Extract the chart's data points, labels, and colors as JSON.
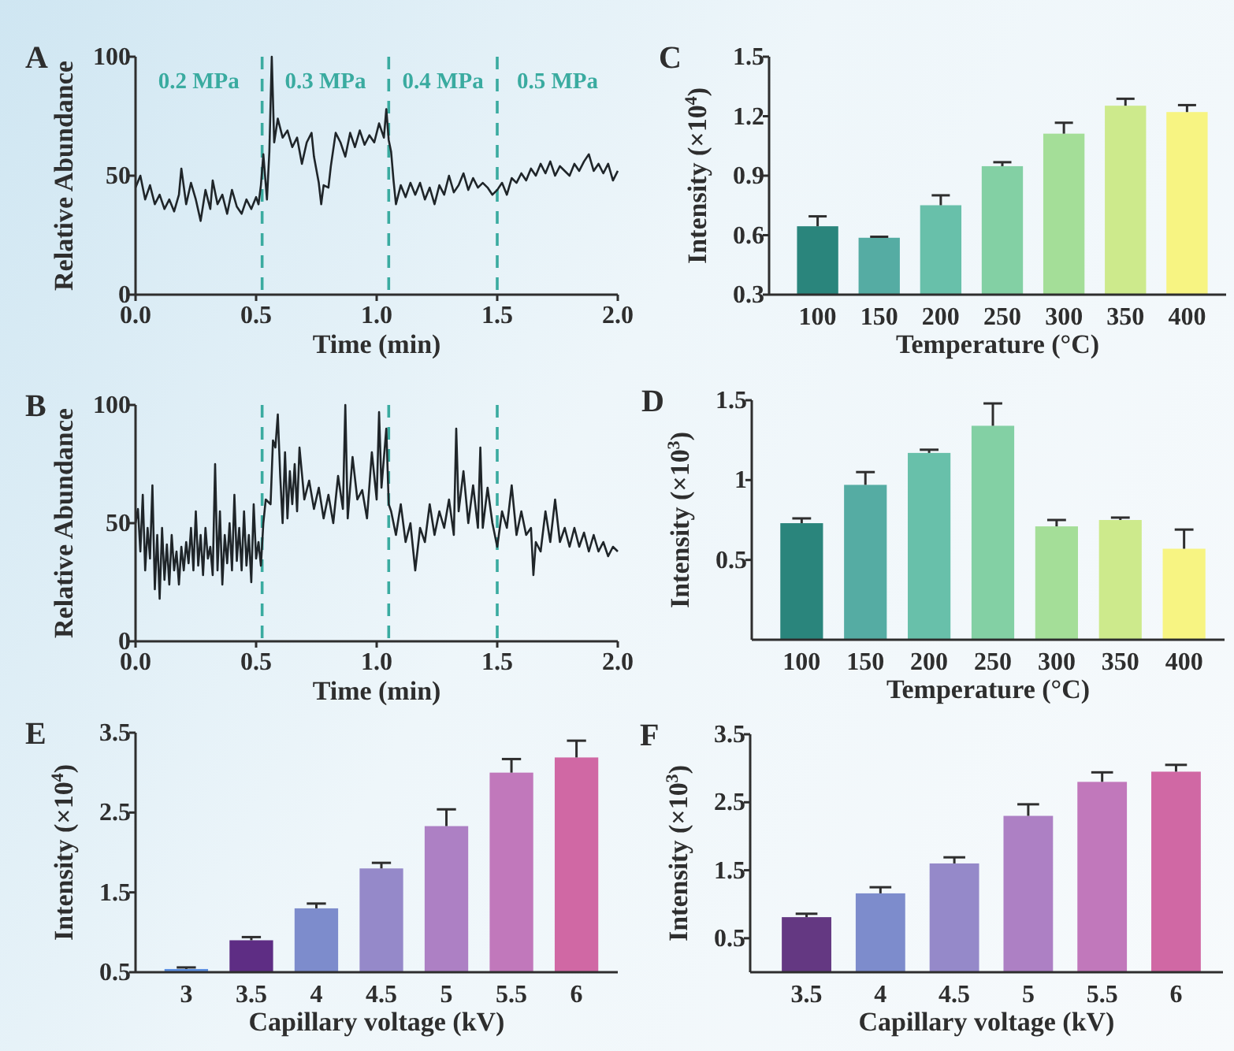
{
  "chart_data": [
    {
      "type": "line",
      "title": "A",
      "xlabel": "Time (min)",
      "ylabel": "Relative Abundance",
      "xlim": [
        0,
        2.0
      ],
      "xticks": [
        {
          "value": 0,
          "label": "0.0"
        },
        {
          "value": 0.5,
          "label": "0.5"
        },
        {
          "value": 1,
          "label": "1.0"
        },
        {
          "value": 1.5,
          "label": "1.5"
        },
        {
          "value": 2,
          "label": "2.0"
        }
      ],
      "ylim": [
        0,
        100
      ],
      "yticks": [
        0,
        50,
        100
      ],
      "x": [
        0,
        0.02,
        0.04,
        0.06,
        0.08,
        0.1,
        0.12,
        0.14,
        0.16,
        0.18,
        0.19,
        0.21,
        0.23,
        0.25,
        0.27,
        0.29,
        0.31,
        0.32,
        0.34,
        0.36,
        0.38,
        0.4,
        0.42,
        0.44,
        0.46,
        0.48,
        0.5,
        0.51,
        0.52,
        0.53,
        0.545,
        0.555,
        0.565,
        0.575,
        0.59,
        0.61,
        0.63,
        0.65,
        0.67,
        0.69,
        0.71,
        0.73,
        0.74,
        0.76,
        0.77,
        0.78,
        0.8,
        0.81,
        0.83,
        0.85,
        0.87,
        0.89,
        0.91,
        0.93,
        0.95,
        0.97,
        0.99,
        1.01,
        1.03,
        1.04,
        1.05,
        1.06,
        1.07,
        1.08,
        1.1,
        1.12,
        1.14,
        1.16,
        1.18,
        1.2,
        1.22,
        1.24,
        1.26,
        1.28,
        1.3,
        1.32,
        1.34,
        1.36,
        1.38,
        1.4,
        1.42,
        1.44,
        1.46,
        1.48,
        1.5,
        1.52,
        1.54,
        1.56,
        1.58,
        1.6,
        1.62,
        1.64,
        1.66,
        1.68,
        1.7,
        1.72,
        1.74,
        1.76,
        1.78,
        1.8,
        1.82,
        1.84,
        1.86,
        1.88,
        1.9,
        1.92,
        1.94,
        1.96,
        1.98,
        2.0
      ],
      "values": [
        45,
        50,
        40,
        46,
        38,
        42,
        36,
        40,
        35,
        42,
        53,
        38,
        47,
        40,
        31,
        44,
        36,
        48,
        38,
        42,
        34,
        44,
        37,
        34,
        40,
        36,
        41,
        38,
        46,
        59,
        40,
        60,
        100,
        64,
        74,
        66,
        69,
        62,
        66,
        55,
        64,
        68,
        58,
        47,
        38,
        46,
        45,
        54,
        68,
        64,
        58,
        68,
        62,
        69,
        63,
        67,
        64,
        72,
        66,
        78,
        65,
        60,
        48,
        38,
        46,
        41,
        47,
        42,
        47,
        40,
        45,
        38,
        46,
        42,
        50,
        43,
        46,
        51,
        44,
        49,
        45,
        47,
        45,
        42,
        44,
        47,
        42,
        49,
        47,
        51,
        48,
        53,
        50,
        55,
        51,
        56,
        50,
        54,
        52,
        50,
        55,
        52,
        56,
        59,
        52,
        55,
        51,
        55,
        48,
        52
      ],
      "color": "#1f2529",
      "ref_lines": [
        {
          "axis": "x",
          "value": 0.525,
          "color": "#3aaba0",
          "line_style": "dashed"
        },
        {
          "axis": "x",
          "value": 1.05,
          "color": "#3aaba0",
          "line_style": "dashed"
        },
        {
          "axis": "x",
          "value": 1.5,
          "color": "#3aaba0",
          "line_style": "dashed"
        }
      ],
      "annotations": [
        "0.2 MPa",
        "0.3 MPa",
        "0.4 MPa",
        "0.5 MPa"
      ]
    },
    {
      "type": "bar",
      "title": "C",
      "xlabel": "Temperature (°C)",
      "ylabel": "Intensity (×10$^{4}$)",
      "categories": [
        "100",
        "150",
        "200",
        "250",
        "300",
        "350",
        "400"
      ],
      "values": [
        0.645,
        0.587,
        0.751,
        0.948,
        1.112,
        1.253,
        1.221
      ],
      "errors": [
        0.05,
        0.005,
        0.05,
        0.02,
        0.055,
        0.035,
        0.035
      ],
      "colors": [
        "#2a857c",
        "#55aca3",
        "#68c0aa",
        "#83d0a4",
        "#a4de98",
        "#cdea8c",
        "#f7f482"
      ],
      "ylim": [
        0.3,
        1.5
      ],
      "yticks": [
        0.3,
        0.6,
        0.9,
        1.2,
        1.5
      ]
    },
    {
      "type": "line",
      "title": "B",
      "xlabel": "Time (min)",
      "ylabel": "Relative Abundance",
      "xlim": [
        0,
        2.0
      ],
      "xticks": [
        {
          "value": 0,
          "label": "0.0"
        },
        {
          "value": 0.5,
          "label": "0.5"
        },
        {
          "value": 1,
          "label": "1.0"
        },
        {
          "value": 1.5,
          "label": "1.5"
        },
        {
          "value": 2,
          "label": "2.0"
        }
      ],
      "ylim": [
        0,
        100
      ],
      "yticks": [
        0,
        50,
        100
      ],
      "x": [
        0,
        0.01,
        0.02,
        0.03,
        0.04,
        0.05,
        0.06,
        0.07,
        0.08,
        0.09,
        0.1,
        0.11,
        0.12,
        0.13,
        0.14,
        0.15,
        0.16,
        0.17,
        0.18,
        0.19,
        0.2,
        0.21,
        0.22,
        0.23,
        0.24,
        0.25,
        0.26,
        0.27,
        0.28,
        0.29,
        0.3,
        0.31,
        0.32,
        0.33,
        0.34,
        0.35,
        0.36,
        0.37,
        0.38,
        0.39,
        0.4,
        0.41,
        0.42,
        0.43,
        0.44,
        0.45,
        0.46,
        0.47,
        0.48,
        0.49,
        0.5,
        0.51,
        0.52,
        0.53,
        0.54,
        0.56,
        0.57,
        0.58,
        0.59,
        0.6,
        0.61,
        0.62,
        0.63,
        0.64,
        0.65,
        0.66,
        0.67,
        0.68,
        0.7,
        0.72,
        0.74,
        0.76,
        0.78,
        0.8,
        0.82,
        0.84,
        0.86,
        0.87,
        0.88,
        0.9,
        0.92,
        0.94,
        0.96,
        0.98,
        1.0,
        1.01,
        1.02,
        1.04,
        1.05,
        1.06,
        1.08,
        1.1,
        1.12,
        1.14,
        1.16,
        1.18,
        1.2,
        1.22,
        1.24,
        1.26,
        1.28,
        1.3,
        1.32,
        1.33,
        1.34,
        1.36,
        1.38,
        1.4,
        1.42,
        1.43,
        1.44,
        1.46,
        1.48,
        1.5,
        1.52,
        1.54,
        1.56,
        1.58,
        1.6,
        1.62,
        1.64,
        1.65,
        1.66,
        1.68,
        1.7,
        1.72,
        1.74,
        1.76,
        1.78,
        1.8,
        1.82,
        1.84,
        1.86,
        1.88,
        1.9,
        1.92,
        1.94,
        1.96,
        1.98,
        2.0
      ],
      "values": [
        50,
        56,
        38,
        62,
        30,
        48,
        35,
        66,
        22,
        45,
        18,
        48,
        26,
        41,
        24,
        45,
        30,
        38,
        24,
        40,
        30,
        42,
        33,
        48,
        30,
        55,
        32,
        45,
        28,
        48,
        35,
        40,
        28,
        75,
        30,
        55,
        24,
        45,
        33,
        50,
        30,
        62,
        34,
        48,
        30,
        55,
        32,
        45,
        25,
        58,
        35,
        42,
        32,
        50,
        60,
        58,
        85,
        82,
        96,
        70,
        50,
        80,
        52,
        72,
        58,
        75,
        55,
        82,
        60,
        68,
        56,
        65,
        52,
        62,
        50,
        70,
        56,
        100,
        52,
        78,
        60,
        64,
        52,
        80,
        60,
        97,
        65,
        90,
        58,
        55,
        45,
        58,
        42,
        50,
        30,
        48,
        42,
        58,
        45,
        55,
        48,
        60,
        45,
        90,
        55,
        72,
        50,
        66,
        48,
        82,
        48,
        65,
        50,
        40,
        55,
        48,
        66,
        45,
        55,
        45,
        48,
        28,
        42,
        38,
        55,
        42,
        60,
        42,
        48,
        40,
        48,
        40,
        46,
        38,
        45,
        38,
        42,
        36,
        40,
        38
      ],
      "color": "#1f2529",
      "ref_lines": [
        {
          "axis": "x",
          "value": 0.525,
          "color": "#3aaba0",
          "line_style": "dashed"
        },
        {
          "axis": "x",
          "value": 1.05,
          "color": "#3aaba0",
          "line_style": "dashed"
        },
        {
          "axis": "x",
          "value": 1.5,
          "color": "#3aaba0",
          "line_style": "dashed"
        }
      ]
    },
    {
      "type": "bar",
      "title": "D",
      "xlabel": "Temperature (°C)",
      "ylabel": "Intensity (×10$^{3}$)",
      "categories": [
        "100",
        "150",
        "200",
        "250",
        "300",
        "350",
        "400"
      ],
      "values": [
        0.73,
        0.97,
        1.17,
        1.34,
        0.71,
        0.75,
        0.57
      ],
      "errors": [
        0.03,
        0.08,
        0.02,
        0.14,
        0.04,
        0.015,
        0.12
      ],
      "colors": [
        "#2a857c",
        "#55aca3",
        "#68c0aa",
        "#83d0a4",
        "#a4de98",
        "#cdea8c",
        "#f7f482"
      ],
      "ylim": [
        0,
        1.5
      ],
      "yticks": [
        0.5,
        1,
        1.5
      ]
    },
    {
      "type": "bar",
      "title": "E",
      "xlabel": "Capillary voltage (kV)",
      "ylabel": "Intensity (×10$^{4}$)",
      "categories": [
        "3",
        "3.5",
        "4",
        "4.5",
        "5",
        "5.5",
        "6"
      ],
      "values": [
        0.54,
        0.9,
        1.3,
        1.8,
        2.33,
        3.0,
        3.19
      ],
      "errors": [
        0.02,
        0.04,
        0.06,
        0.07,
        0.21,
        0.17,
        0.21
      ],
      "colors": [
        "#5b8ee0",
        "#5e2d84",
        "#7d8ccc",
        "#9589c9",
        "#ad80c4",
        "#c178bb",
        "#d068a4"
      ],
      "ylim": [
        0.5,
        3.5
      ],
      "yticks": [
        0.5,
        1.5,
        2.5,
        3.5
      ]
    },
    {
      "type": "bar",
      "title": "F",
      "xlabel": "Capillary voltage (kV)",
      "ylabel": "Intensity (×10$^{3}$)",
      "categories": [
        "3.5",
        "4",
        "4.5",
        "5",
        "5.5",
        "6"
      ],
      "values": [
        0.81,
        1.16,
        1.6,
        2.3,
        2.8,
        2.95
      ],
      "errors": [
        0.05,
        0.09,
        0.09,
        0.17,
        0.14,
        0.1
      ],
      "colors": [
        "#643882",
        "#7d8ccc",
        "#9589c9",
        "#ad80c4",
        "#c178bb",
        "#d068a4"
      ],
      "ylim": [
        0,
        3.5
      ],
      "yticks": [
        0.5,
        1.5,
        2.5,
        3.5
      ]
    }
  ]
}
